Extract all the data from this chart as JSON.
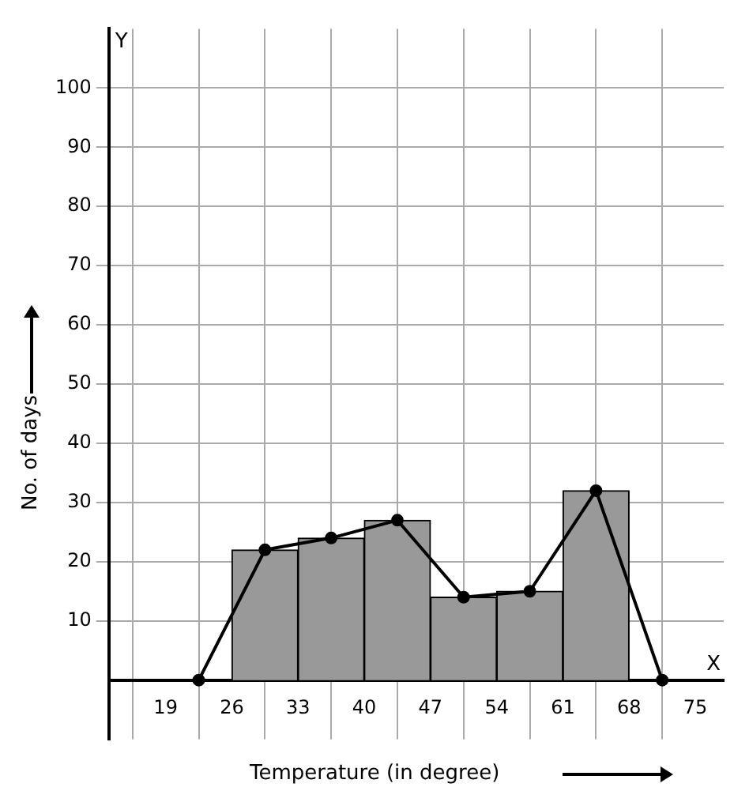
{
  "chart_data": {
    "type": "histogram",
    "xlabel": "Temperature (in degree)",
    "ylabel": "No. of days",
    "bins": [
      26,
      33,
      40,
      47,
      54,
      61,
      68
    ],
    "series": [
      {
        "values": [
          22,
          24,
          27,
          14,
          15,
          32
        ],
        "color": "#999999"
      },
      {
        "type": "line",
        "x": [
          22.5,
          29.5,
          36.5,
          43.5,
          50.5,
          57.5,
          64.5,
          71.5
        ],
        "values": [
          0,
          22,
          24,
          27,
          14,
          15,
          32,
          0
        ],
        "color": "#000000",
        "marker": "circle"
      }
    ],
    "xlim": [
      13,
      78
    ],
    "xticks": [
      19,
      26,
      33,
      40,
      47,
      54,
      61,
      68,
      75
    ],
    "ylim": [
      -10,
      110
    ],
    "yticks": [
      10,
      20,
      30,
      40,
      50,
      60,
      70,
      80,
      90,
      100
    ],
    "annotations": [
      "X",
      "Y"
    ],
    "grid": true,
    "legend": false
  }
}
